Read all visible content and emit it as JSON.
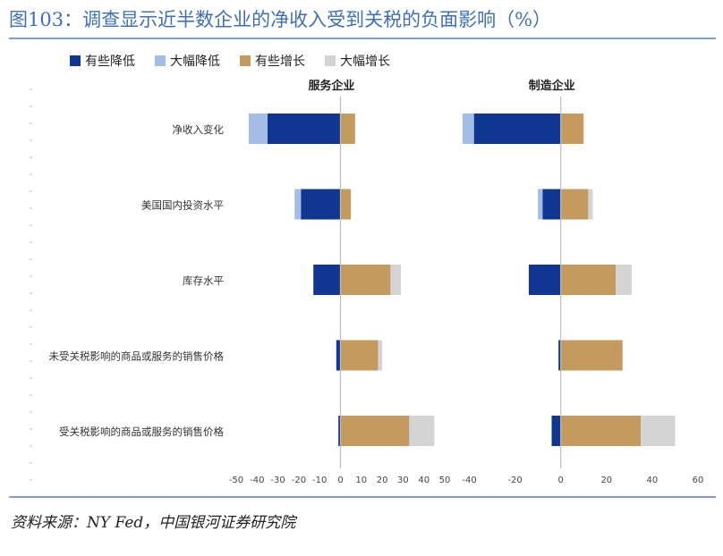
{
  "header": {
    "title": "图103：调查显示近半数企业的净收入受到关税的负面影响（%）"
  },
  "footer": {
    "source": "资料来源：NY Fed，中国银河证券研究院"
  },
  "chart_data": [
    {
      "type": "bar",
      "stacked": true,
      "orientation": "horizontal",
      "title": "服务企业",
      "categories": [
        "净收入变化",
        "美国国内投资水平",
        "库存水平",
        "未受关税影响的商品或服务的销售价格",
        "受关税影响的商品或服务的销售价格"
      ],
      "series": [
        {
          "name": "有些降低",
          "values": [
            -35,
            -19,
            -13,
            -2,
            -1
          ],
          "color": "#0f3792"
        },
        {
          "name": "大幅降低",
          "values": [
            -9,
            -3,
            0,
            0,
            0
          ],
          "color": "#a3bde6"
        },
        {
          "name": "有些增长",
          "values": [
            7,
            5,
            24,
            18,
            33
          ],
          "color": "#c49a5f"
        },
        {
          "name": "大幅增长",
          "values": [
            0,
            0,
            5,
            2,
            12
          ],
          "color": "#d4d4d4"
        }
      ],
      "xlim": [
        -50,
        50
      ],
      "xticks": [
        -50,
        -40,
        -30,
        -20,
        -10,
        0,
        10,
        20,
        30,
        40,
        50
      ],
      "legend_position": "top"
    },
    {
      "type": "bar",
      "stacked": true,
      "orientation": "horizontal",
      "title": "制造企业",
      "categories": [
        "净收入变化",
        "美国国内投资水平",
        "库存水平",
        "未受关税影响的商品或服务的销售价格",
        "受关税影响的商品或服务的销售价格"
      ],
      "series": [
        {
          "name": "有些降低",
          "values": [
            -38,
            -8,
            -14,
            -1,
            -4
          ],
          "color": "#0f3792"
        },
        {
          "name": "大幅降低",
          "values": [
            -5,
            -2,
            0,
            0,
            0
          ],
          "color": "#a3bde6"
        },
        {
          "name": "有些增长",
          "values": [
            10,
            12,
            24,
            27,
            35
          ],
          "color": "#c49a5f"
        },
        {
          "name": "大幅增长",
          "values": [
            0,
            2,
            7,
            0,
            15
          ],
          "color": "#d4d4d4"
        }
      ],
      "xlim": [
        -50,
        60
      ],
      "xticks": [
        -40,
        -20,
        0,
        20,
        40,
        60
      ],
      "legend_position": "top"
    }
  ]
}
